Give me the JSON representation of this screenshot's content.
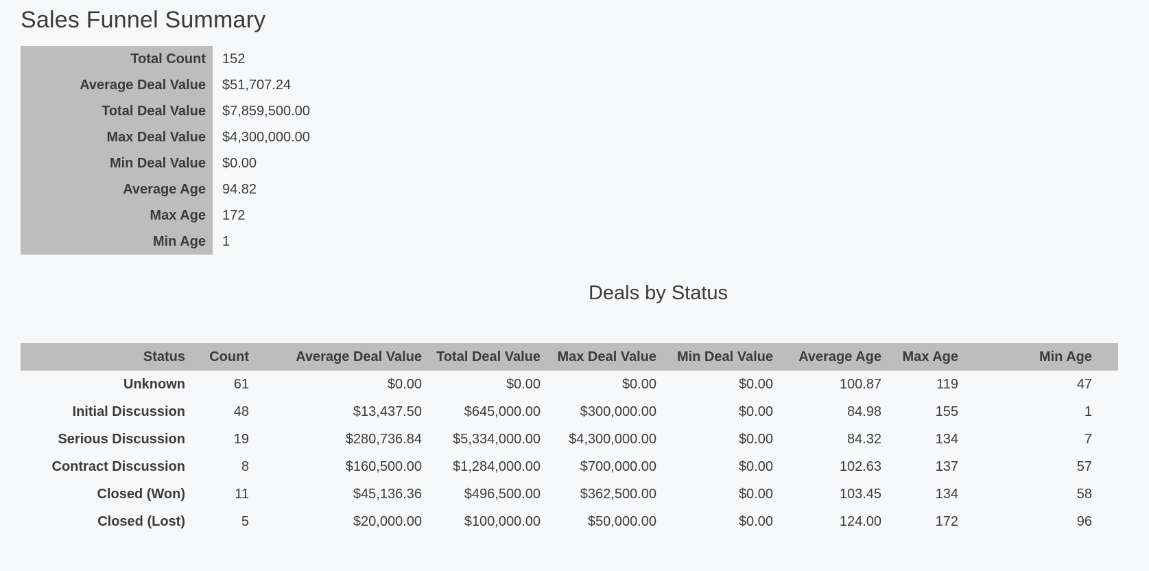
{
  "colors": {
    "background": "#f7f8fa",
    "table_header_bg": "#bdbdbd",
    "text": "#3b3b3b"
  },
  "title": "Sales Funnel Summary",
  "summary": {
    "rows": [
      {
        "label": "Total Count",
        "value": "152"
      },
      {
        "label": "Average Deal Value",
        "value": "$51,707.24"
      },
      {
        "label": "Total Deal Value",
        "value": "$7,859,500.00"
      },
      {
        "label": "Max Deal Value",
        "value": "$4,300,000.00"
      },
      {
        "label": "Min Deal Value",
        "value": "$0.00"
      },
      {
        "label": "Average Age",
        "value": "94.82"
      },
      {
        "label": "Max Age",
        "value": "172"
      },
      {
        "label": "Min Age",
        "value": "1"
      }
    ]
  },
  "deals_by_status": {
    "heading": "Deals by Status",
    "columns": [
      "Status",
      "Count",
      "Average Deal Value",
      "Total Deal Value",
      "Max Deal Value",
      "Min Deal Value",
      "Average Age",
      "Max Age",
      "Min Age"
    ],
    "rows": [
      [
        "Unknown",
        "61",
        "$0.00",
        "$0.00",
        "$0.00",
        "$0.00",
        "100.87",
        "119",
        "47"
      ],
      [
        "Initial Discussion",
        "48",
        "$13,437.50",
        "$645,000.00",
        "$300,000.00",
        "$0.00",
        "84.98",
        "155",
        "1"
      ],
      [
        "Serious Discussion",
        "19",
        "$280,736.84",
        "$5,334,000.00",
        "$4,300,000.00",
        "$0.00",
        "84.32",
        "134",
        "7"
      ],
      [
        "Contract Discussion",
        "8",
        "$160,500.00",
        "$1,284,000.00",
        "$700,000.00",
        "$0.00",
        "102.63",
        "137",
        "57"
      ],
      [
        "Closed (Won)",
        "11",
        "$45,136.36",
        "$496,500.00",
        "$362,500.00",
        "$0.00",
        "103.45",
        "134",
        "58"
      ],
      [
        "Closed (Lost)",
        "5",
        "$20,000.00",
        "$100,000.00",
        "$50,000.00",
        "$0.00",
        "124.00",
        "172",
        "96"
      ]
    ]
  }
}
